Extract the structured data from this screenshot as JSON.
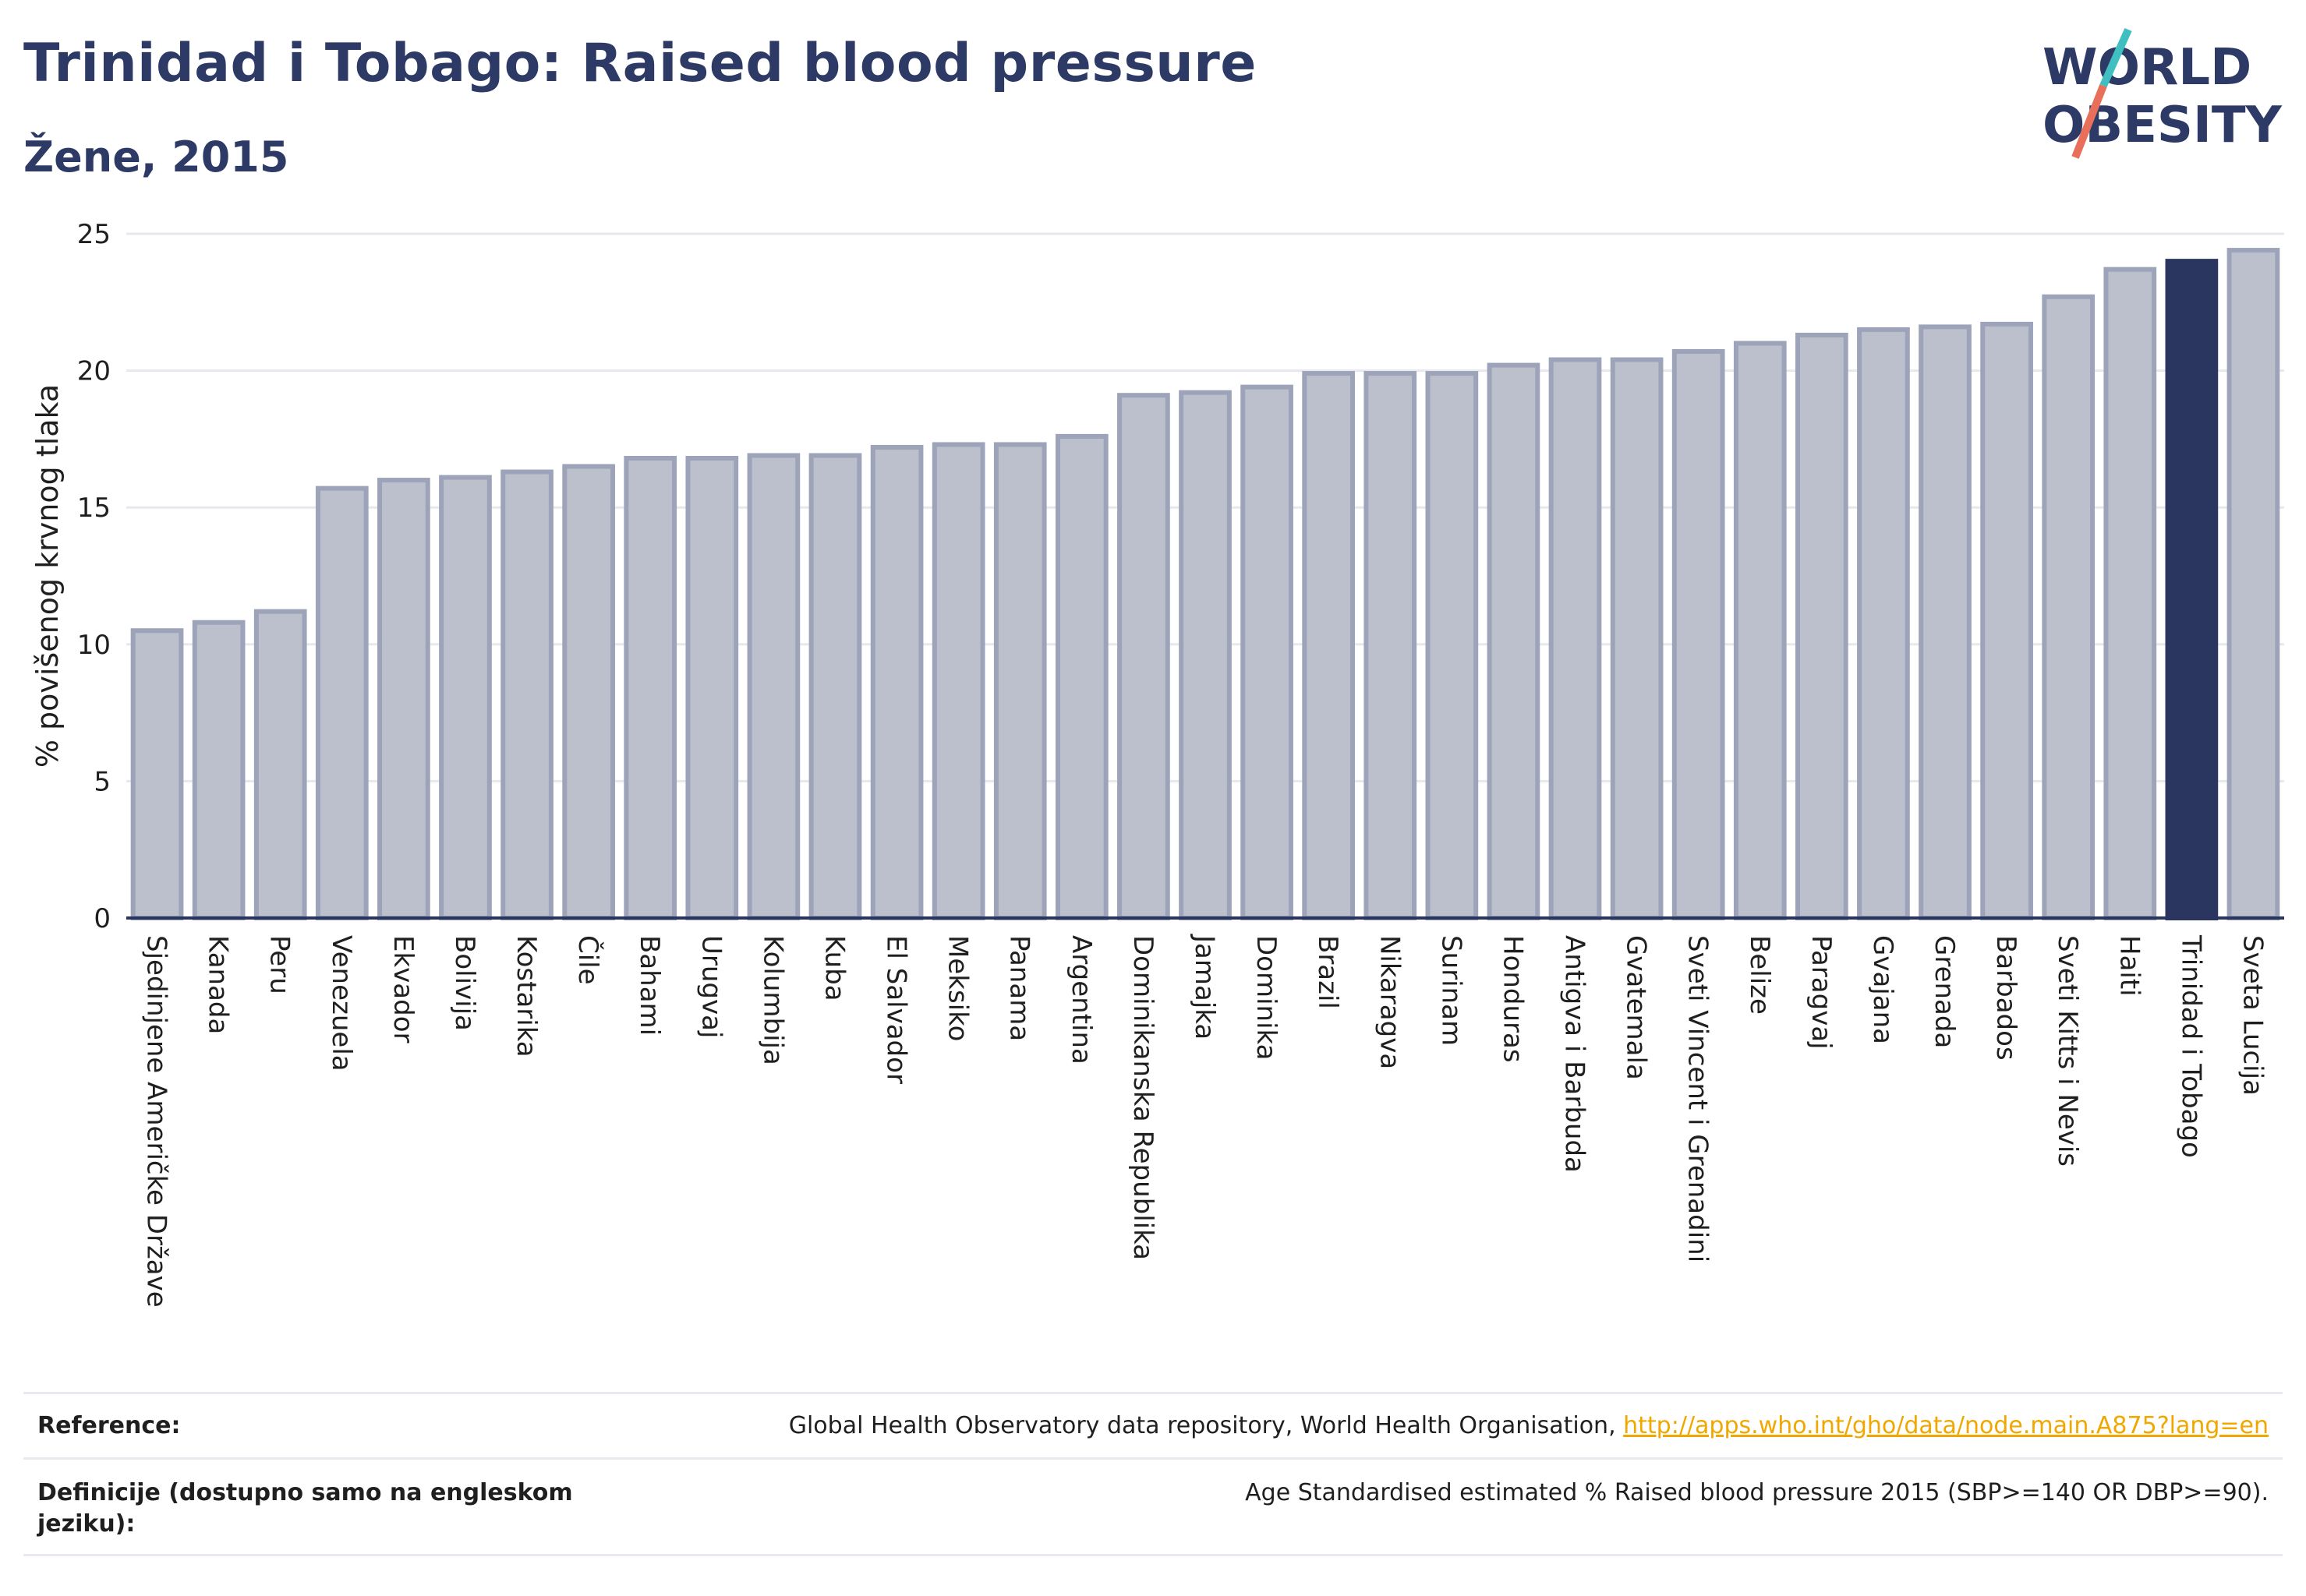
{
  "header": {
    "title": "Trinidad i Tobago: Raised blood pressure",
    "subtitle": "Žene, 2015"
  },
  "logo": {
    "line1": "WORLD",
    "line2": "OBESITY",
    "colors": {
      "text": "#2e3a66",
      "slash_teal": "#3fbfbf",
      "slash_coral": "#e8705a"
    }
  },
  "colors": {
    "bar_fill": "#bcc0cd",
    "bar_stroke": "#9da3b8",
    "highlight_fill": "#2b3660",
    "axis_text": "#1f1f1f",
    "grid": "#e6e8ee",
    "link": "#f0a800"
  },
  "chart_data": {
    "type": "bar",
    "title": "Trinidad i Tobago: Raised blood pressure",
    "subtitle": "Žene, 2015",
    "ylabel": "% povišenog krvnog tlaka",
    "xlabel": "",
    "ylim": [
      0,
      25
    ],
    "yticks": [
      0,
      5,
      10,
      15,
      20,
      25
    ],
    "grid": true,
    "highlight": "Trinidad i Tobago",
    "categories": [
      "Sjedinjene Američke Države",
      "Kanada",
      "Peru",
      "Venezuela",
      "Ekvador",
      "Bolivija",
      "Kostarika",
      "Čile",
      "Bahami",
      "Urugvaj",
      "Kolumbija",
      "Kuba",
      "El Salvador",
      "Meksiko",
      "Panama",
      "Argentina",
      "Dominikanska Republika",
      "Jamajka",
      "Dominika",
      "Brazil",
      "Nikaragva",
      "Surinam",
      "Honduras",
      "Antigva i Barbuda",
      "Gvatemala",
      "Sveti Vincent i Grenadini",
      "Belize",
      "Paragvaj",
      "Gvajana",
      "Grenada",
      "Barbados",
      "Sveti Kitts i Nevis",
      "Haiti",
      "Trinidad i Tobago",
      "Sveta Lucija"
    ],
    "values": [
      10.5,
      10.8,
      11.2,
      15.7,
      16.0,
      16.1,
      16.3,
      16.5,
      16.8,
      16.8,
      16.9,
      16.9,
      17.2,
      17.3,
      17.3,
      17.6,
      19.1,
      19.2,
      19.4,
      19.9,
      19.9,
      19.9,
      20.2,
      20.4,
      20.4,
      20.7,
      21.0,
      21.3,
      21.5,
      21.6,
      21.7,
      22.7,
      23.7,
      24.0,
      24.4
    ]
  },
  "footer": {
    "reference_label": "Reference:",
    "reference_text": "Global Health Observatory data repository, World Health Organisation, ",
    "reference_link": "http://apps.who.int/gho/data/node.main.A875?lang=en",
    "definition_label_line1": "Definicije (dostupno samo na engleskom",
    "definition_label_line2": "jeziku):",
    "definition_text": "Age Standardised estimated % Raised blood pressure 2015 (SBP>=140 OR DBP>=90)."
  }
}
